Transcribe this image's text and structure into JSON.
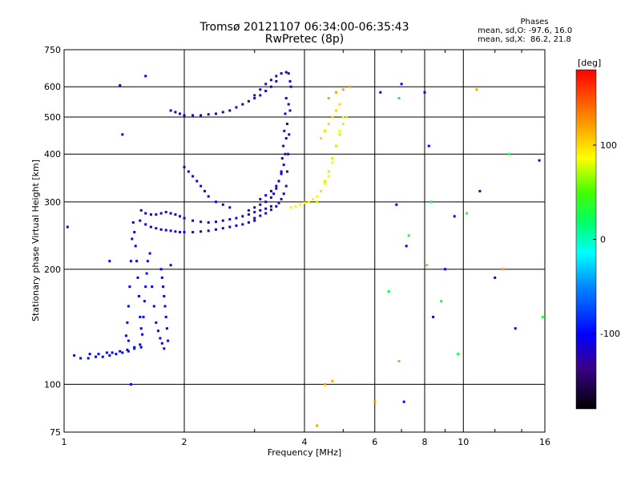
{
  "title_line1": "Tromsø 20121107 06:34:00-06:35:43",
  "title_line2": "RwPretec (8p)",
  "stats": {
    "heading": "Phases",
    "line_o": "mean, sd,O: -97.6, 16.0",
    "line_x": "mean, sd,X:  86.2, 21.8"
  },
  "chart_data": {
    "type": "scatter",
    "xlabel": "Frequency [MHz]",
    "ylabel": "Stationary phase Virtual Height [km]",
    "xscale": "log",
    "yscale": "log",
    "xlim": [
      1,
      16
    ],
    "ylim": [
      75,
      750
    ],
    "xticks": [
      1,
      2,
      4,
      6,
      8,
      10,
      16
    ],
    "xtick_labels": [
      "1",
      "2",
      "4",
      "6",
      "8",
      "10",
      "16"
    ],
    "yticks": [
      75,
      100,
      200,
      300,
      400,
      500,
      600,
      750
    ],
    "ytick_labels": [
      "75",
      "100",
      "200",
      "300",
      "400",
      "500",
      "600",
      "750"
    ],
    "grid": true,
    "colorbar": {
      "label": "[deg]",
      "range": [
        -180,
        180
      ],
      "ticks": [
        100,
        0,
        -100
      ],
      "tick_labels": [
        "100",
        "0",
        "-100"
      ]
    },
    "series": [
      {
        "trace": "E-layer",
        "phase": -105,
        "x": [
          1.06,
          1.1,
          1.15,
          1.2,
          1.25,
          1.3,
          1.35,
          1.4,
          1.45,
          1.5,
          1.55
        ],
        "y": [
          119,
          117,
          117,
          118,
          118,
          119,
          120,
          121,
          122,
          124,
          127
        ]
      },
      {
        "trace": "E-layer",
        "phase": -100,
        "x": [
          1.16,
          1.22,
          1.28,
          1.32,
          1.38,
          1.44,
          1.5
        ],
        "y": [
          120,
          120,
          121,
          121,
          122,
          123,
          125
        ]
      },
      {
        "trace": "Es/E vertical",
        "phase": -105,
        "x": [
          1.56,
          1.57,
          1.58,
          1.59,
          1.6,
          1.61,
          1.62,
          1.64,
          1.66,
          1.68,
          1.7,
          1.72,
          1.74,
          1.76,
          1.78
        ],
        "y": [
          125,
          135,
          150,
          165,
          180,
          195,
          210,
          220,
          180,
          160,
          145,
          138,
          132,
          128,
          124
        ]
      },
      {
        "trace": "Es/E vertical",
        "phase": -100,
        "x": [
          1.43,
          1.44,
          1.45,
          1.46,
          1.47,
          1.48,
          1.49,
          1.5,
          1.51,
          1.52,
          1.53,
          1.54,
          1.55,
          1.56
        ],
        "y": [
          134,
          145,
          160,
          180,
          210,
          240,
          265,
          250,
          230,
          210,
          190,
          170,
          150,
          140
        ]
      },
      {
        "trace": "Es/E vertical",
        "phase": -110,
        "x": [
          1.75,
          1.76,
          1.77,
          1.78,
          1.79,
          1.8,
          1.81,
          1.82
        ],
        "y": [
          200,
          190,
          180,
          170,
          160,
          150,
          140,
          130
        ]
      },
      {
        "trace": "F1 lower",
        "phase": -110,
        "x": [
          1.55,
          1.6,
          1.65,
          1.7,
          1.75,
          1.8,
          1.85,
          1.9,
          1.95,
          2.0,
          2.1,
          2.2,
          2.3,
          2.4,
          2.5,
          2.6,
          2.7,
          2.8,
          2.9,
          3.0
        ],
        "y": [
          268,
          262,
          258,
          256,
          254,
          253,
          252,
          251,
          250,
          250,
          250,
          251,
          252,
          254,
          256,
          258,
          260,
          262,
          265,
          268
        ]
      },
      {
        "trace": "F1 upper",
        "phase": -115,
        "x": [
          1.56,
          1.6,
          1.65,
          1.7,
          1.75,
          1.8,
          1.85,
          1.9,
          1.95,
          2.0,
          2.1,
          2.2,
          2.3,
          2.4,
          2.5,
          2.6,
          2.7,
          2.8,
          2.9,
          3.0,
          3.1,
          3.2,
          3.3
        ],
        "y": [
          285,
          280,
          278,
          278,
          280,
          282,
          280,
          278,
          275,
          272,
          268,
          266,
          265,
          266,
          268,
          270,
          272,
          275,
          278,
          282,
          285,
          288,
          292
        ]
      },
      {
        "trace": "F-layer rise",
        "phase": -125,
        "x": [
          3.0,
          3.1,
          3.2,
          3.3,
          3.4,
          3.45,
          3.5,
          3.55,
          3.6,
          3.62,
          3.64,
          3.66,
          3.68,
          3.7
        ],
        "y": [
          272,
          276,
          280,
          286,
          292,
          298,
          305,
          315,
          330,
          360,
          400,
          450,
          520,
          600
        ]
      },
      {
        "trace": "F-layer rise",
        "phase": -120,
        "x": [
          2.9,
          3.0,
          3.1,
          3.2,
          3.3,
          3.35,
          3.4,
          3.45,
          3.5,
          3.52,
          3.54,
          3.56,
          3.58,
          3.6
        ],
        "y": [
          285,
          290,
          295,
          300,
          308,
          315,
          325,
          340,
          360,
          390,
          420,
          460,
          510,
          560
        ]
      },
      {
        "trace": "F-layer rise",
        "phase": -110,
        "x": [
          3.1,
          3.2,
          3.3,
          3.4,
          3.45,
          3.5,
          3.55,
          3.58,
          3.6,
          3.62,
          3.65,
          3.68
        ],
        "y": [
          305,
          312,
          320,
          330,
          340,
          355,
          375,
          400,
          440,
          480,
          540,
          620
        ]
      },
      {
        "trace": "F upper band",
        "phase": -115,
        "x": [
          1.85,
          1.9,
          1.95,
          2.0,
          2.1,
          2.2,
          2.3,
          2.4,
          2.5,
          2.6,
          2.7,
          2.8,
          2.9,
          3.0,
          3.1,
          3.2,
          3.3,
          3.4
        ],
        "y": [
          520,
          515,
          510,
          505,
          505,
          505,
          508,
          510,
          515,
          520,
          530,
          540,
          550,
          560,
          570,
          585,
          600,
          620
        ]
      },
      {
        "trace": "F upper band",
        "phase": -125,
        "x": [
          3.0,
          3.1,
          3.2,
          3.3,
          3.4,
          3.5,
          3.6,
          3.65
        ],
        "y": [
          570,
          590,
          610,
          625,
          640,
          650,
          655,
          650
        ]
      },
      {
        "trace": "F2 mid",
        "phase": -110,
        "x": [
          2.0,
          2.05,
          2.1,
          2.15,
          2.2,
          2.25,
          2.3,
          2.4,
          2.5,
          2.6
        ],
        "y": [
          370,
          360,
          350,
          340,
          330,
          320,
          310,
          300,
          295,
          290
        ]
      },
      {
        "trace": "X cluster",
        "phase": 90,
        "x": [
          3.7,
          3.8,
          3.9,
          4.0,
          4.1,
          4.2,
          4.3,
          4.4,
          4.5,
          4.6,
          4.7,
          4.8,
          4.9,
          5.0
        ],
        "y": [
          290,
          292,
          295,
          298,
          300,
          305,
          310,
          320,
          335,
          350,
          380,
          420,
          460,
          500
        ]
      },
      {
        "trace": "X cluster",
        "phase": 75,
        "x": [
          4.3,
          4.4,
          4.5,
          4.6,
          4.7,
          4.8,
          4.9,
          5.0,
          5.1
        ],
        "y": [
          300,
          320,
          340,
          360,
          390,
          420,
          450,
          480,
          500
        ]
      },
      {
        "trace": "X cluster",
        "phase": 100,
        "x": [
          4.4,
          4.5,
          4.6,
          4.7,
          4.8,
          4.9
        ],
        "y": [
          440,
          460,
          480,
          500,
          520,
          540
        ]
      },
      {
        "trace": "X scatter",
        "phase": 120,
        "x": [
          4.6,
          4.8,
          5.0,
          5.2
        ],
        "y": [
          560,
          580,
          590,
          600
        ]
      },
      {
        "trace": "Noise",
        "phase": -100,
        "x": [
          1.02,
          1.38,
          1.4,
          1.6,
          1.3,
          1.85,
          6.2,
          7.0,
          7.1,
          8.0,
          8.2,
          9.5,
          12.0,
          15.5,
          6.8,
          7.2,
          8.4,
          9.0,
          11.0,
          13.5,
          1.47,
          1.45
        ],
        "y": [
          258,
          605,
          450,
          640,
          210,
          205,
          580,
          610,
          90,
          580,
          420,
          275,
          190,
          385,
          295,
          230,
          150,
          200,
          320,
          140,
          100,
          130
        ]
      },
      {
        "trace": "Noise",
        "phase": 30,
        "x": [
          6.9,
          7.3,
          8.8,
          10.2,
          13.0,
          6.5,
          8.3,
          9.7,
          15.8
        ],
        "y": [
          560,
          245,
          165,
          280,
          400,
          175,
          300,
          120,
          150
        ]
      },
      {
        "trace": "Noise",
        "phase": 120,
        "x": [
          4.3,
          4.7,
          6.9,
          8.1,
          10.8,
          12.6,
          4.5,
          6.0
        ],
        "y": [
          78,
          102,
          115,
          205,
          590,
          200,
          100,
          90
        ]
      }
    ]
  }
}
